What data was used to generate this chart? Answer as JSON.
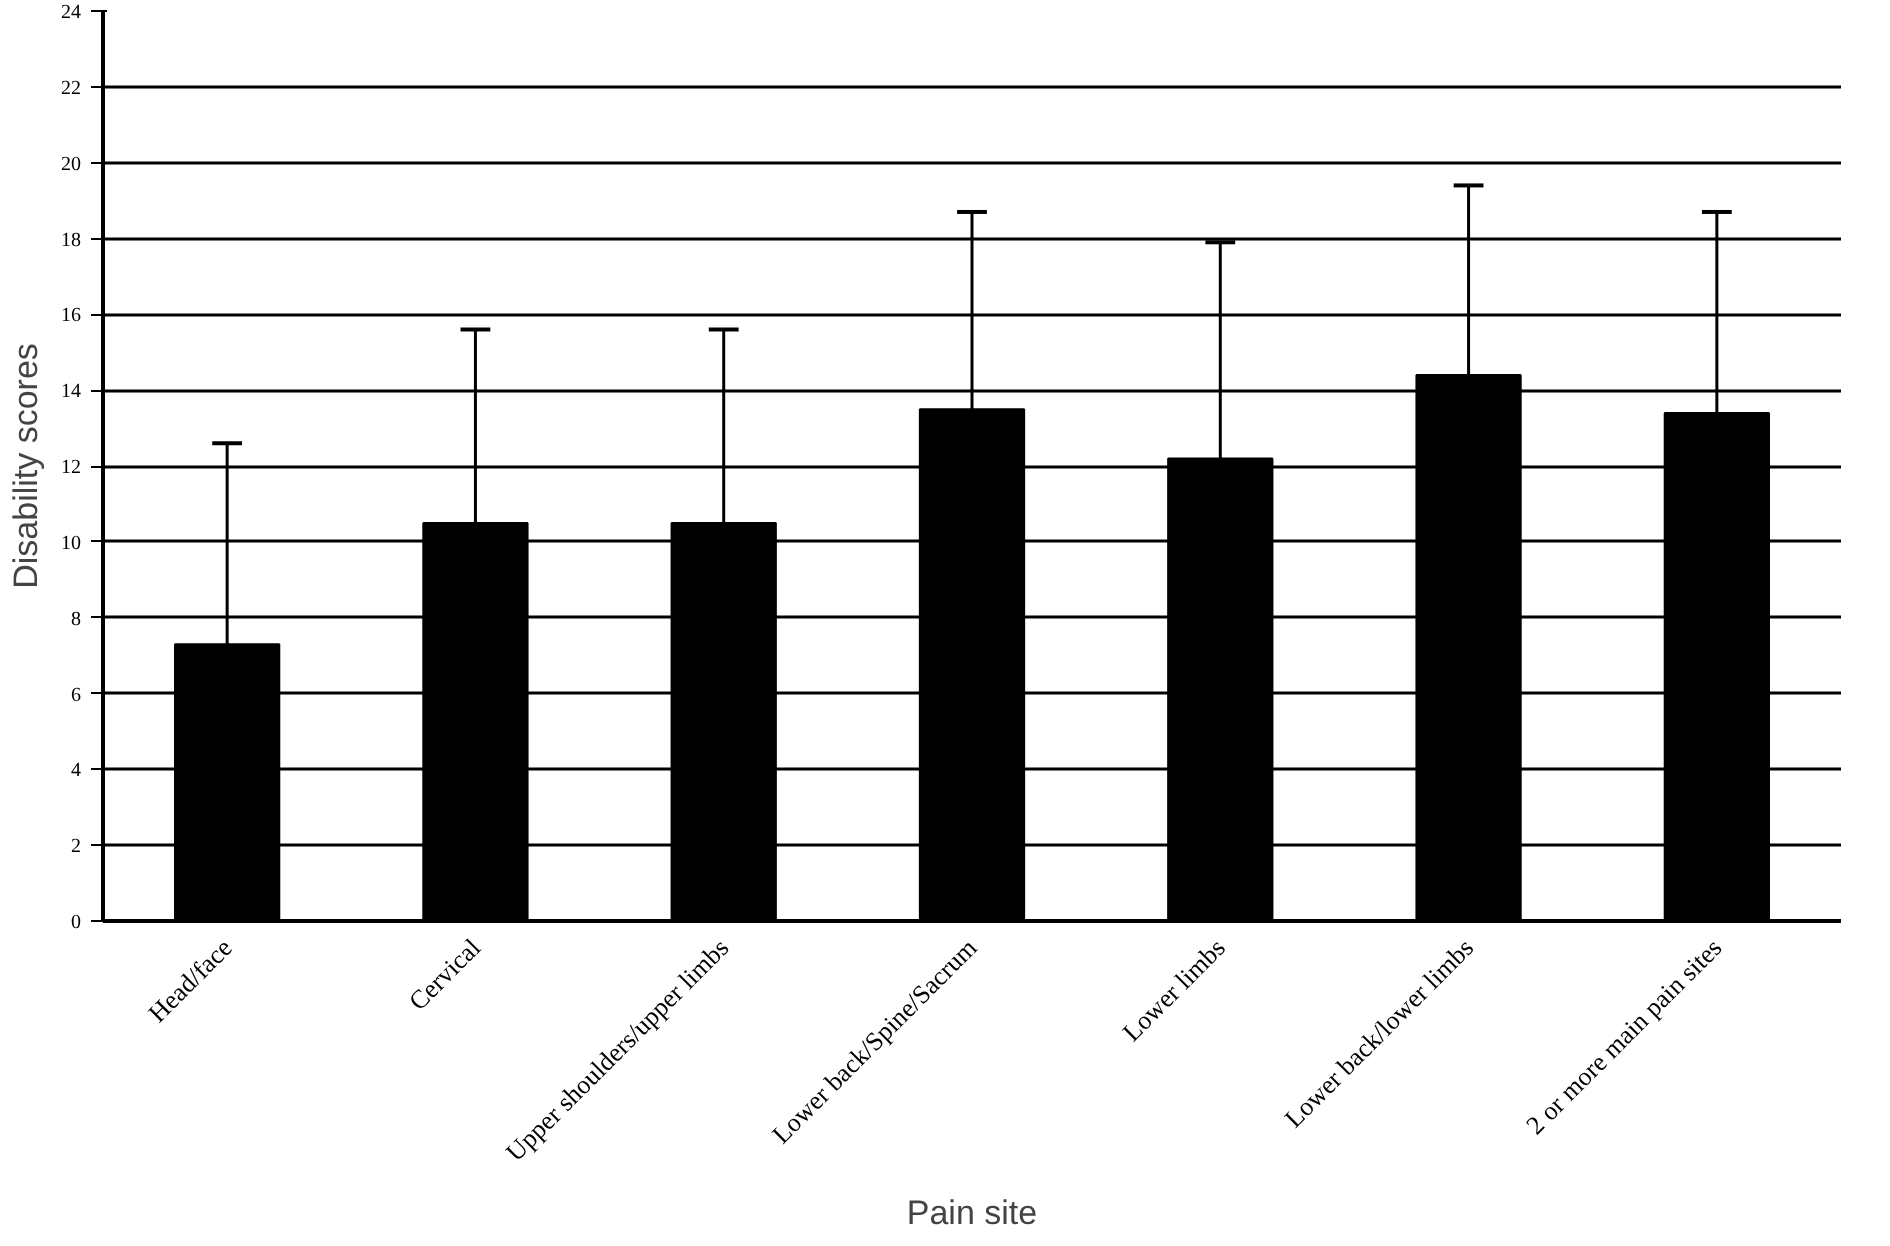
{
  "chart_data": {
    "type": "bar",
    "xlabel": "Pain site",
    "ylabel": "Disability scores",
    "categories": [
      "Head/face",
      "Cervical",
      "Upper shoulders/upper limbs",
      "Lower back/Spine/Sacrum",
      "Lower limbs",
      "Lower back/lower limbs",
      "2 or more main pain sites"
    ],
    "values": [
      7.3,
      10.5,
      10.5,
      13.5,
      12.2,
      14.4,
      13.4
    ],
    "errors": [
      [
        7.3,
        12.6
      ],
      [
        10.5,
        15.6
      ],
      [
        10.5,
        15.6
      ],
      [
        13.5,
        18.7
      ],
      [
        12.2,
        17.9
      ],
      [
        14.4,
        19.4
      ],
      [
        13.4,
        18.7
      ]
    ],
    "color": "#000000",
    "ylim": [
      0,
      24
    ],
    "yticks": [
      0,
      2,
      4,
      6,
      8,
      10,
      12,
      14,
      16,
      18,
      20,
      22,
      24
    ],
    "grid": "y"
  }
}
